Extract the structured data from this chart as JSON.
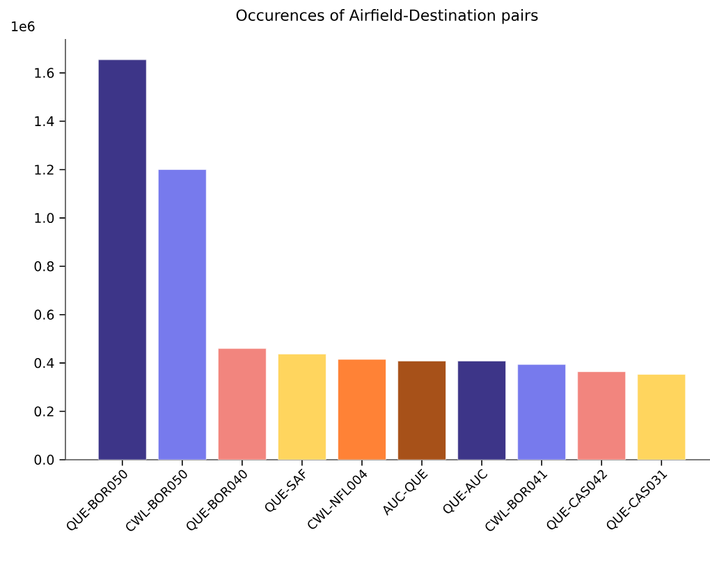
{
  "chart_data": {
    "type": "bar",
    "title": "Occurences of Airfield-Destination pairs",
    "categories": [
      "QUE-BOR050",
      "CWL-BOR050",
      "QUE-BOR040",
      "QUE-SAF",
      "CWL-NFL004",
      "AUC-QUE",
      "QUE-AUC",
      "CWL-BOR041",
      "QUE-CAS042",
      "QUE-CAS031"
    ],
    "values": [
      1.654,
      1.2,
      0.46,
      0.437,
      0.415,
      0.408,
      0.408,
      0.394,
      0.364,
      0.353
    ],
    "colors": [
      "#3d3588",
      "#777aed",
      "#f2857e",
      "#ffd55e",
      "#ff8236",
      "#a75119",
      "#3d3588",
      "#777aed",
      "#f2857e",
      "#ffd55e"
    ],
    "ylim": [
      0,
      1.74
    ],
    "yticks": [
      {
        "value": 0,
        "label": "0.0"
      },
      {
        "value": 0.2,
        "label": "0.2"
      },
      {
        "value": 0.4,
        "label": "0.4"
      },
      {
        "value": 0.6,
        "label": "0.6"
      },
      {
        "value": 0.8,
        "label": "0.8"
      },
      {
        "value": 1.0,
        "label": "1.0"
      },
      {
        "value": 1.2,
        "label": "1.2"
      },
      {
        "value": 1.4,
        "label": "1.4"
      },
      {
        "value": 1.6,
        "label": "1.6"
      }
    ],
    "annotations": [
      "1e6"
    ]
  }
}
